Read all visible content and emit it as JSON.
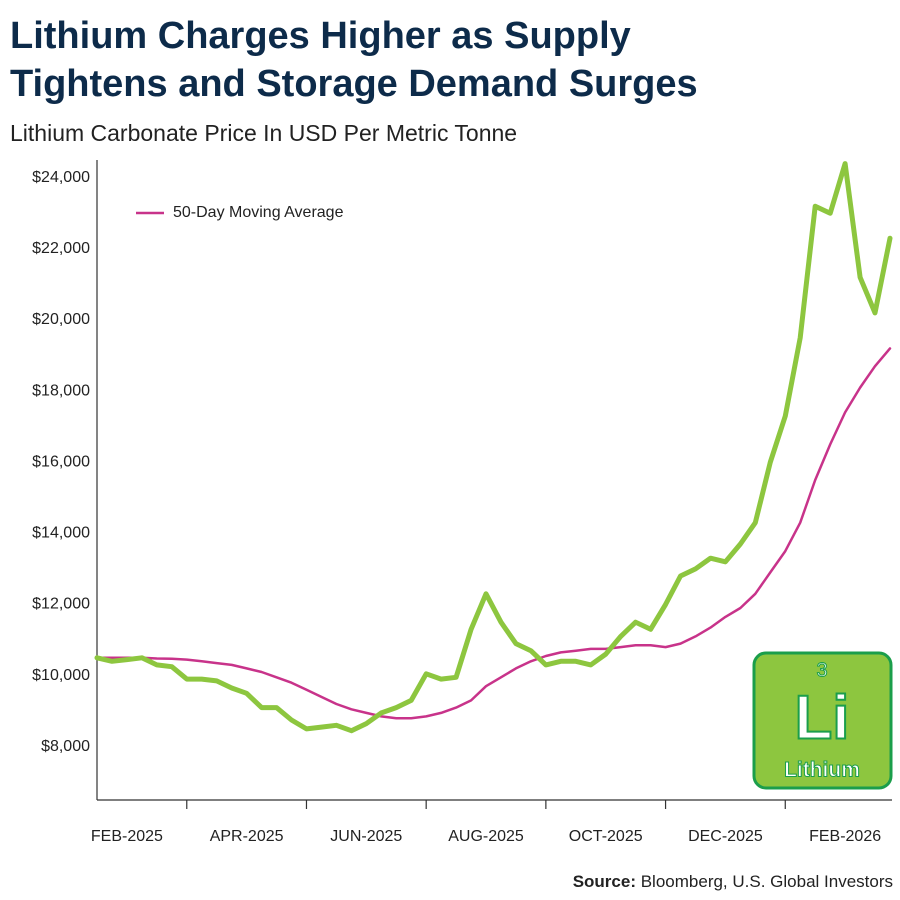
{
  "chart_data": {
    "type": "line",
    "title": [
      "Lithium Charges Higher as Supply",
      "Tightens and Storage Demand Surges"
    ],
    "subtitle": "Lithium Carbonate Price In USD Per Metric Tonne",
    "source_label": "Source:",
    "source": "Bloomberg, U.S. Global Investors",
    "logo": {
      "number": "3",
      "symbol": "Li",
      "name": "Lithium",
      "color": "#8dc63f"
    },
    "legend": "upper left",
    "categories": [
      null,
      null,
      "FEB-2025",
      null,
      null,
      null,
      null,
      null,
      null,
      null,
      "APR-2025",
      null,
      null,
      null,
      null,
      null,
      null,
      null,
      "JUN-2025",
      null,
      null,
      null,
      null,
      null,
      null,
      null,
      "AUG-2025",
      null,
      null,
      null,
      null,
      null,
      null,
      null,
      "OCT-2025",
      null,
      null,
      null,
      null,
      null,
      null,
      null,
      "DEC-2025",
      null,
      null,
      null,
      null,
      null,
      null,
      null,
      "FEB-2026",
      null,
      null,
      null
    ],
    "series": [
      {
        "color": "#8dc63f",
        "values": [
          10500,
          10400,
          10450,
          10500,
          10300,
          10250,
          9900,
          9900,
          9850,
          9650,
          9500,
          9100,
          9100,
          8750,
          8500,
          8550,
          8600,
          8450,
          8650,
          8950,
          9100,
          9300,
          10050,
          9900,
          9950,
          11300,
          12300,
          11500,
          10900,
          10700,
          10300,
          10400,
          10400,
          10300,
          10600,
          11100,
          11500,
          11300,
          12000,
          12800,
          13000,
          13300,
          13200,
          13700,
          14300,
          16000,
          17300,
          19500,
          23200,
          23000,
          24400,
          21200,
          20200,
          22300
        ]
      },
      {
        "name": "50-Day Moving Average",
        "color": "#c8338a",
        "values": [
          10500,
          10500,
          10500,
          10500,
          10480,
          10470,
          10450,
          10400,
          10350,
          10300,
          10200,
          10100,
          9950,
          9800,
          9600,
          9400,
          9200,
          9050,
          8950,
          8850,
          8800,
          8800,
          8850,
          8950,
          9100,
          9300,
          9700,
          9950,
          10200,
          10400,
          10550,
          10650,
          10700,
          10750,
          10750,
          10800,
          10850,
          10850,
          10800,
          10900,
          11100,
          11350,
          11650,
          11900,
          12300,
          12900,
          13500,
          14300,
          15500,
          16500,
          17400,
          18100,
          18700,
          19200
        ]
      }
    ],
    "ylim": [
      6500,
      24500
    ],
    "yticks": [
      {
        "value": 8000,
        "label": "$8,000"
      },
      {
        "value": 10000,
        "label": "$10,000"
      },
      {
        "value": 12000,
        "label": "$12,000"
      },
      {
        "value": 14000,
        "label": "$14,000"
      },
      {
        "value": 16000,
        "label": "$16,000"
      },
      {
        "value": 18000,
        "label": "$18,000"
      },
      {
        "value": 20000,
        "label": "$20,000"
      },
      {
        "value": 22000,
        "label": "$22,000"
      },
      {
        "value": 24000,
        "label": "$24,000"
      }
    ],
    "grid": false
  }
}
